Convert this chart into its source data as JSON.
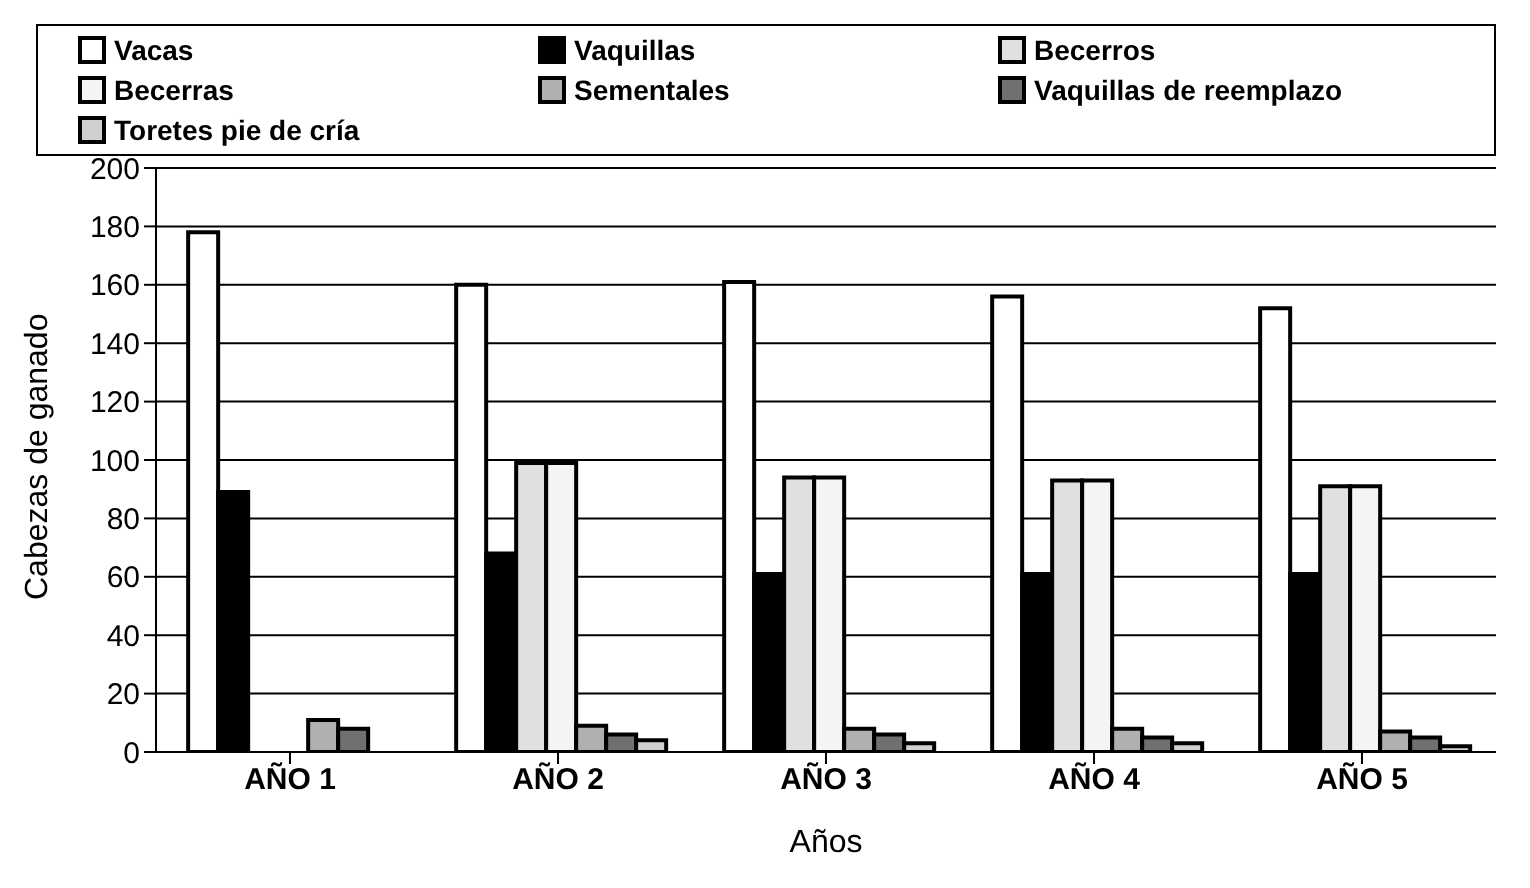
{
  "chart_data": {
    "type": "bar",
    "xlabel": "Años",
    "ylabel": "Cabezas de ganado",
    "categories": [
      "AÑO 1",
      "AÑO 2",
      "AÑO 3",
      "AÑO 4",
      "AÑO 5"
    ],
    "series": [
      {
        "name": "Vacas",
        "color": "#ffffff",
        "values": [
          178,
          160,
          161,
          156,
          152
        ]
      },
      {
        "name": "Vaquillas",
        "color": "#000000",
        "values": [
          89,
          68,
          61,
          61,
          61
        ]
      },
      {
        "name": "Becerros",
        "color": "#e0e0e0",
        "values": [
          0,
          99,
          94,
          93,
          91
        ]
      },
      {
        "name": "Becerras",
        "color": "#f4f4f4",
        "values": [
          0,
          99,
          94,
          93,
          91
        ]
      },
      {
        "name": "Sementales",
        "color": "#b0b0b0",
        "values": [
          11,
          9,
          8,
          8,
          7
        ]
      },
      {
        "name": "Vaquillas de reemplazo",
        "color": "#707070",
        "values": [
          8,
          6,
          6,
          5,
          5
        ]
      },
      {
        "name": "Toretes pie de cría",
        "color": "#d0d0d0",
        "values": [
          0,
          4,
          3,
          3,
          2
        ]
      }
    ],
    "ylim": [
      0,
      200
    ],
    "yticks": [
      0,
      20,
      40,
      60,
      80,
      100,
      120,
      140,
      160,
      180,
      200
    ],
    "grid": "y",
    "legend": "top"
  }
}
